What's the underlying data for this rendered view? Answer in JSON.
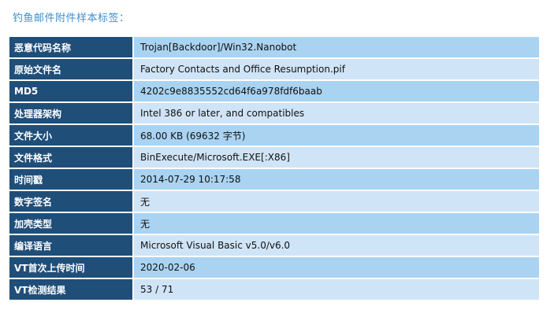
{
  "caption": "钓鱼邮件附件样本标签：",
  "rows": [
    {
      "key": "恶意代码名称",
      "value": "Trojan[Backdoor]/Win32.Nanobot"
    },
    {
      "key": "原始文件名",
      "value": "Factory Contacts and Office Resumption.pif"
    },
    {
      "key": "MD5",
      "value": "4202c9e8835552cd64f6a978fdf6baab"
    },
    {
      "key": "处理器架构",
      "value": "Intel 386 or later, and compatibles"
    },
    {
      "key": "文件大小",
      "value": "68.00 KB (69632 字节)"
    },
    {
      "key": "文件格式",
      "value": "BinExecute/Microsoft.EXE[:X86]"
    },
    {
      "key": "时间戳",
      "value": "2014-07-29 10:17:58"
    },
    {
      "key": "数字签名",
      "value": "无"
    },
    {
      "key": "加壳类型",
      "value": "无"
    },
    {
      "key": "编译语言",
      "value": "Microsoft Visual Basic v5.0/v6.0"
    },
    {
      "key": "VT首次上传时间",
      "value": "2020-02-06"
    },
    {
      "key": "VT检测结果",
      "value": "53 / 71"
    }
  ],
  "colors": {
    "caption": "#3a8fcf",
    "key_background": "#1f4e79",
    "value_background_odd": "#a9d3f1",
    "value_background_even": "#cfe4f6"
  }
}
